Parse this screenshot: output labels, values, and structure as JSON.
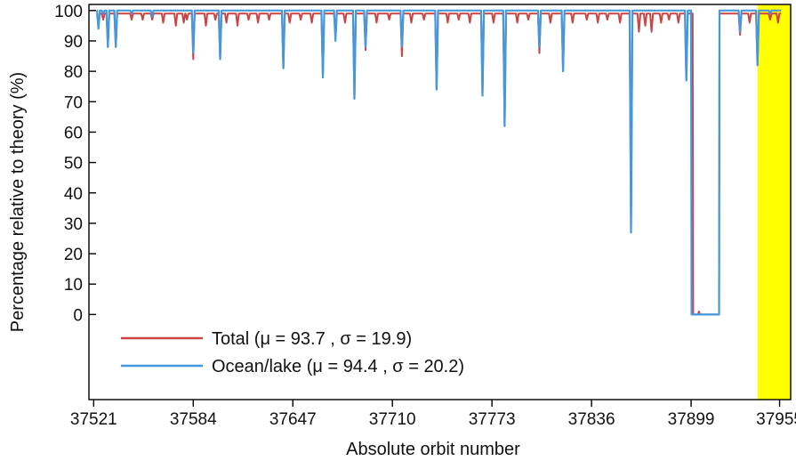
{
  "chart_data": {
    "type": "line",
    "title": "",
    "xlabel": "Absolute orbit number",
    "ylabel": "Percentage relative to theory (%)",
    "xlim": [
      37518,
      37962
    ],
    "ylim": [
      -28,
      102
    ],
    "x_ticks": [
      37521,
      37584,
      37647,
      37710,
      37773,
      37836,
      37899,
      37955
    ],
    "y_ticks": [
      0,
      10,
      20,
      30,
      40,
      50,
      60,
      70,
      80,
      90,
      100
    ],
    "grid": false,
    "legend_position": "bottom-left",
    "highlight": {
      "x_start": 37941,
      "x_end": 37962,
      "color": "#ffff00"
    },
    "series": [
      {
        "name": "Total (μ = 93.7 , σ = 19.9)",
        "color": "#cc4444",
        "baseline": 99,
        "start": 37523,
        "end": 37956,
        "gap": [
          37900,
          37917
        ],
        "gap_value": 0,
        "dips": [
          [
            37524,
            95
          ],
          [
            37527,
            97
          ],
          [
            37530,
            88
          ],
          [
            37535,
            88
          ],
          [
            37545,
            97
          ],
          [
            37552,
            97
          ],
          [
            37558,
            97
          ],
          [
            37565,
            96
          ],
          [
            37573,
            95
          ],
          [
            37580,
            97
          ],
          [
            37578,
            96
          ],
          [
            37584,
            84
          ],
          [
            37592,
            95
          ],
          [
            37598,
            97
          ],
          [
            37601,
            84
          ],
          [
            37605,
            96
          ],
          [
            37612,
            95
          ],
          [
            37619,
            97
          ],
          [
            37625,
            96
          ],
          [
            37632,
            97
          ],
          [
            37641,
            81
          ],
          [
            37645,
            96
          ],
          [
            37652,
            97
          ],
          [
            37659,
            96
          ],
          [
            37666,
            78
          ],
          [
            37674,
            92
          ],
          [
            37680,
            96
          ],
          [
            37686,
            71
          ],
          [
            37693,
            87
          ],
          [
            37700,
            96
          ],
          [
            37708,
            97
          ],
          [
            37716,
            85
          ],
          [
            37722,
            96
          ],
          [
            37730,
            97
          ],
          [
            37738,
            74
          ],
          [
            37745,
            96
          ],
          [
            37752,
            97
          ],
          [
            37759,
            96
          ],
          [
            37767,
            72
          ],
          [
            37774,
            96
          ],
          [
            37781,
            62
          ],
          [
            37789,
            96
          ],
          [
            37796,
            97
          ],
          [
            37803,
            86
          ],
          [
            37810,
            96
          ],
          [
            37818,
            80
          ],
          [
            37824,
            96
          ],
          [
            37833,
            97
          ],
          [
            37840,
            96
          ],
          [
            37846,
            97
          ],
          [
            37854,
            96
          ],
          [
            37861,
            27
          ],
          [
            37866,
            93
          ],
          [
            37870,
            95
          ],
          [
            37874,
            93
          ],
          [
            37880,
            96
          ],
          [
            37885,
            97
          ],
          [
            37891,
            96
          ],
          [
            37896,
            77
          ],
          [
            37904,
            1
          ],
          [
            37922,
            99
          ],
          [
            37930,
            92
          ],
          [
            37936,
            96
          ],
          [
            37941,
            82
          ],
          [
            37949,
            97
          ],
          [
            37954,
            96
          ]
        ]
      },
      {
        "name": "Ocean/lake (μ = 94.4 , σ = 20.2)",
        "color": "#4499dd",
        "baseline": 100,
        "start": 37523,
        "end": 37956,
        "gap": [
          37899,
          37917
        ],
        "gap_value": 0,
        "dips": [
          [
            37524,
            94
          ],
          [
            37527,
            99
          ],
          [
            37530,
            88
          ],
          [
            37535,
            88
          ],
          [
            37545,
            99
          ],
          [
            37558,
            98
          ],
          [
            37584,
            86
          ],
          [
            37601,
            84
          ],
          [
            37641,
            81
          ],
          [
            37666,
            78
          ],
          [
            37674,
            90
          ],
          [
            37686,
            71
          ],
          [
            37693,
            88
          ],
          [
            37716,
            88
          ],
          [
            37738,
            74
          ],
          [
            37767,
            72
          ],
          [
            37781,
            62
          ],
          [
            37803,
            88
          ],
          [
            37818,
            80
          ],
          [
            37861,
            27
          ],
          [
            37896,
            77
          ],
          [
            37930,
            93
          ],
          [
            37941,
            82
          ],
          [
            37949,
            99
          ]
        ]
      }
    ]
  }
}
